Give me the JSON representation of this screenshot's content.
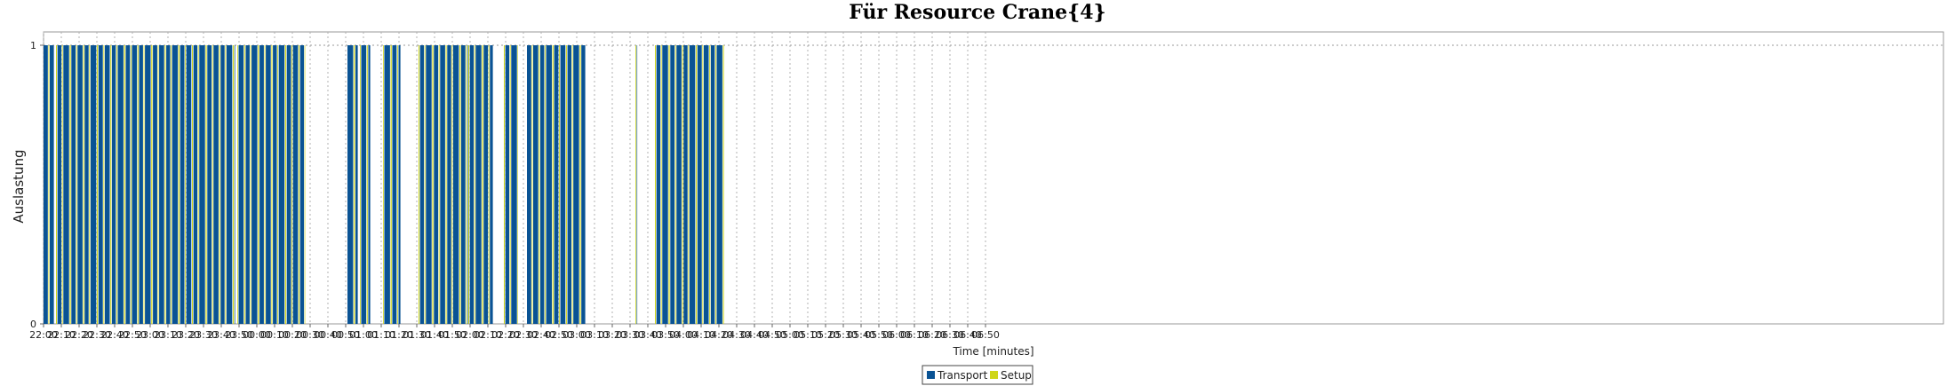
{
  "chart_data": {
    "type": "bar",
    "title": "Für Resource Crane{4}",
    "xlabel": "Time [minutes]",
    "ylabel": "Auslastung",
    "y_ticks": [
      "0",
      "1"
    ],
    "ylim": [
      0,
      1
    ],
    "x_start_label": "22:00",
    "x_tick_labels": [
      "22:00",
      "22:10",
      "22:20",
      "22:30",
      "22:40",
      "22:50",
      "23:00",
      "23:10",
      "23:20",
      "23:30",
      "23:40",
      "23:50",
      "00:00",
      "00:10",
      "00:20",
      "00:30",
      "00:40",
      "00:50",
      "01:00",
      "01:10",
      "01:20",
      "01:30",
      "01:40",
      "01:50",
      "02:00",
      "02:10",
      "02:20",
      "02:30",
      "02:40",
      "02:50",
      "03:00",
      "03:10",
      "03:20",
      "03:30",
      "03:40",
      "03:50",
      "04:00",
      "04:10",
      "04:20",
      "04:30",
      "04:40",
      "04:50",
      "05:00",
      "05:10",
      "05:20",
      "05:30",
      "05:40",
      "05:50",
      "06:00",
      "06:10",
      "06:20",
      "06:30",
      "06:40",
      "06:50"
    ],
    "x_range_minutes": [
      0,
      540
    ],
    "grid": true,
    "legend_position": "bottom-center",
    "series": [
      {
        "name": "Transport",
        "color": "#0a5394"
      },
      {
        "name": "Setup",
        "color": "#cfd61a"
      }
    ],
    "busy_intervals_minutes": [
      [
        0,
        6
      ],
      [
        7,
        108
      ],
      [
        109,
        147
      ],
      [
        171,
        177
      ],
      [
        178,
        184
      ],
      [
        191,
        201
      ],
      [
        211,
        239
      ],
      [
        239,
        253
      ],
      [
        259,
        267
      ],
      [
        272,
        305
      ],
      [
        333,
        334
      ],
      [
        344,
        383
      ]
    ]
  }
}
